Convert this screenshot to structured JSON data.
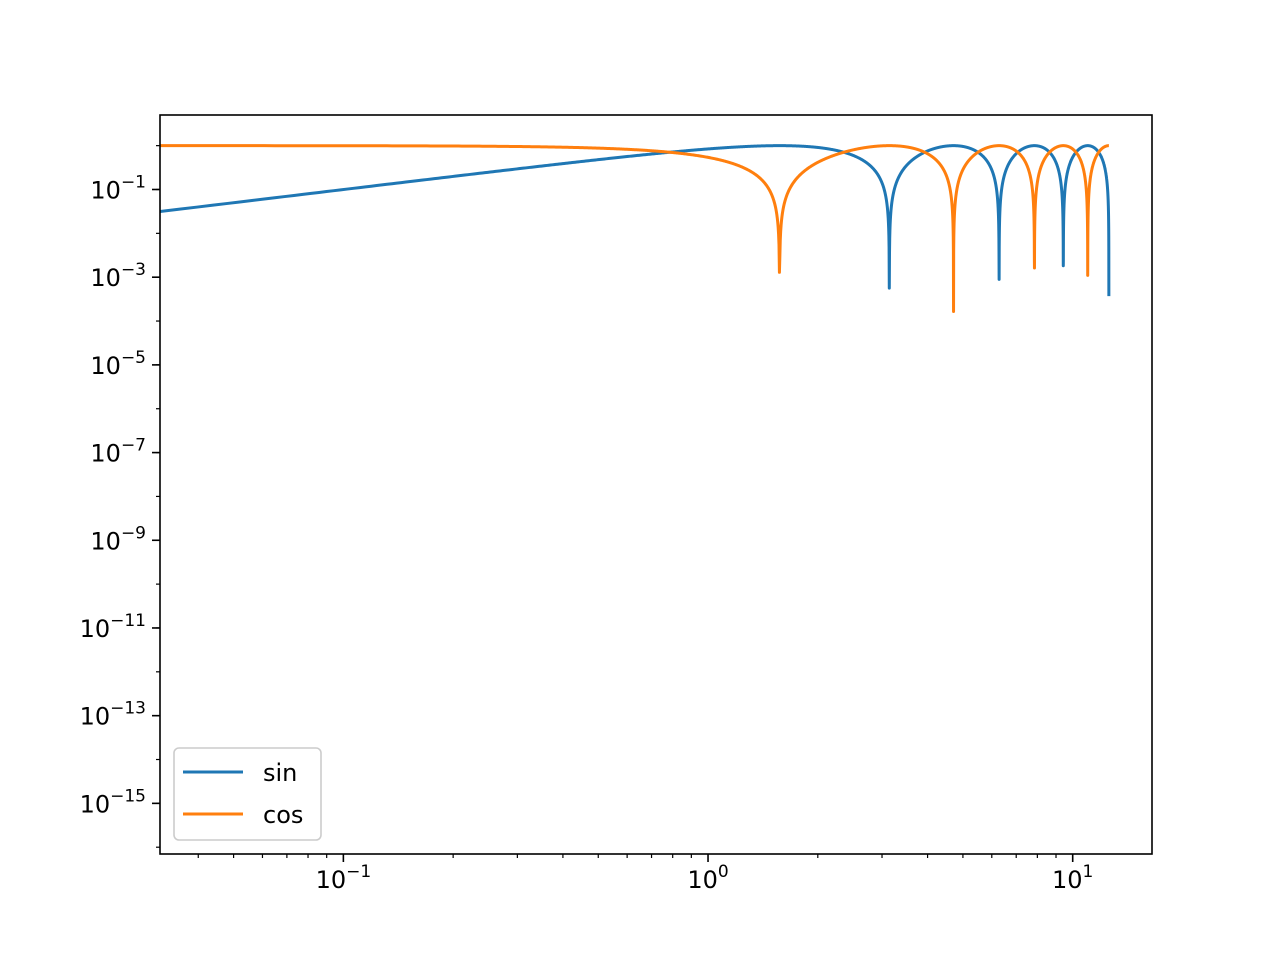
{
  "chart_data": {
    "type": "line",
    "title": "",
    "xlabel": "",
    "ylabel": "",
    "xscale": "log",
    "yscale": "log",
    "xlim": [
      0.031416,
      16.5
    ],
    "ylim": [
      7e-17,
      5.0
    ],
    "grid": false,
    "legend_placement": "lower-left",
    "x_ticks": [
      {
        "value": 0.1,
        "base": "10",
        "exp": "−1"
      },
      {
        "value": 1,
        "base": "10",
        "exp": "0"
      },
      {
        "value": 10,
        "base": "10",
        "exp": "1"
      }
    ],
    "y_ticks": [
      {
        "value": 1e-15,
        "base": "10",
        "exp": "−15"
      },
      {
        "value": 1e-13,
        "base": "10",
        "exp": "−13"
      },
      {
        "value": 1e-11,
        "base": "10",
        "exp": "−11"
      },
      {
        "value": 1e-09,
        "base": "10",
        "exp": "−9"
      },
      {
        "value": 1e-07,
        "base": "10",
        "exp": "−7"
      },
      {
        "value": 1e-05,
        "base": "10",
        "exp": "−5"
      },
      {
        "value": 0.001,
        "base": "10",
        "exp": "−3"
      },
      {
        "value": 0.1,
        "base": "10",
        "exp": "−1"
      }
    ],
    "x_range": [
      0.031416,
      12.566
    ],
    "series": [
      {
        "name": "sin",
        "color": "#1f77b4",
        "function": "sin"
      },
      {
        "name": "cos",
        "color": "#ff7f0e",
        "function": "cos"
      }
    ]
  }
}
